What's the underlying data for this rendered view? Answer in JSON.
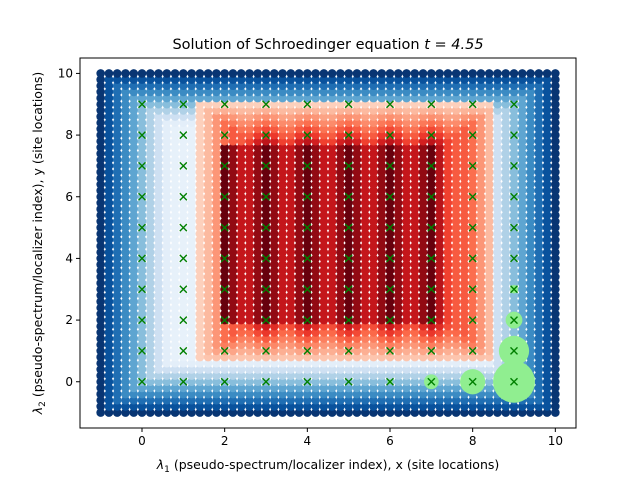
{
  "chart_data": {
    "type": "scatter",
    "title": "Solution of Schroedinger equation",
    "title_math": "t = 4.55",
    "xlabel": "(pseudo-spectrum/localizer index), x (site locations)",
    "xlabel_symbol": "λ",
    "xlabel_sub": "1",
    "ylabel": "(pseudo-spectrum/localizer index), y (site locations)",
    "ylabel_symbol": "λ",
    "ylabel_sub": "2",
    "xlim": [
      -1.5,
      10.5
    ],
    "ylim": [
      -1.5,
      10.5
    ],
    "x_ticks": [
      0,
      2,
      4,
      6,
      8,
      10
    ],
    "y_ticks": [
      0,
      2,
      4,
      6,
      8,
      10
    ],
    "grid": false,
    "background_grid": {
      "x_range": [
        -1,
        10
      ],
      "y_range": [
        -1,
        10
      ],
      "step": 0.2,
      "description_colormaps": [
        "Blues",
        "Reds"
      ]
    },
    "site_markers": {
      "marker": "x",
      "color": "#008000",
      "points": [
        [
          0,
          0
        ],
        [
          0,
          1
        ],
        [
          0,
          2
        ],
        [
          0,
          3
        ],
        [
          0,
          4
        ],
        [
          0,
          5
        ],
        [
          0,
          6
        ],
        [
          0,
          7
        ],
        [
          0,
          8
        ],
        [
          0,
          9
        ],
        [
          1,
          0
        ],
        [
          1,
          1
        ],
        [
          1,
          2
        ],
        [
          1,
          3
        ],
        [
          1,
          4
        ],
        [
          1,
          5
        ],
        [
          1,
          6
        ],
        [
          1,
          7
        ],
        [
          1,
          8
        ],
        [
          1,
          9
        ],
        [
          2,
          0
        ],
        [
          2,
          1
        ],
        [
          2,
          2
        ],
        [
          2,
          3
        ],
        [
          2,
          4
        ],
        [
          2,
          5
        ],
        [
          2,
          6
        ],
        [
          2,
          7
        ],
        [
          2,
          8
        ],
        [
          2,
          9
        ],
        [
          3,
          0
        ],
        [
          3,
          1
        ],
        [
          3,
          2
        ],
        [
          3,
          3
        ],
        [
          3,
          4
        ],
        [
          3,
          5
        ],
        [
          3,
          6
        ],
        [
          3,
          7
        ],
        [
          3,
          8
        ],
        [
          3,
          9
        ],
        [
          4,
          0
        ],
        [
          4,
          1
        ],
        [
          4,
          2
        ],
        [
          4,
          3
        ],
        [
          4,
          4
        ],
        [
          4,
          5
        ],
        [
          4,
          6
        ],
        [
          4,
          7
        ],
        [
          4,
          8
        ],
        [
          4,
          9
        ],
        [
          5,
          0
        ],
        [
          5,
          1
        ],
        [
          5,
          2
        ],
        [
          5,
          3
        ],
        [
          5,
          4
        ],
        [
          5,
          5
        ],
        [
          5,
          6
        ],
        [
          5,
          7
        ],
        [
          5,
          8
        ],
        [
          5,
          9
        ],
        [
          6,
          0
        ],
        [
          6,
          1
        ],
        [
          6,
          2
        ],
        [
          6,
          3
        ],
        [
          6,
          4
        ],
        [
          6,
          5
        ],
        [
          6,
          6
        ],
        [
          6,
          7
        ],
        [
          6,
          8
        ],
        [
          6,
          9
        ],
        [
          7,
          0
        ],
        [
          7,
          1
        ],
        [
          7,
          2
        ],
        [
          7,
          3
        ],
        [
          7,
          4
        ],
        [
          7,
          5
        ],
        [
          7,
          6
        ],
        [
          7,
          7
        ],
        [
          7,
          8
        ],
        [
          7,
          9
        ],
        [
          8,
          0
        ],
        [
          8,
          1
        ],
        [
          8,
          2
        ],
        [
          8,
          3
        ],
        [
          8,
          4
        ],
        [
          8,
          5
        ],
        [
          8,
          6
        ],
        [
          8,
          7
        ],
        [
          8,
          8
        ],
        [
          8,
          9
        ],
        [
          9,
          0
        ],
        [
          9,
          1
        ],
        [
          9,
          2
        ],
        [
          9,
          3
        ],
        [
          9,
          4
        ],
        [
          9,
          5
        ],
        [
          9,
          6
        ],
        [
          9,
          7
        ],
        [
          9,
          8
        ],
        [
          9,
          9
        ]
      ]
    },
    "amplitude_circles": {
      "color": "#90ee90",
      "points": [
        {
          "x": 9,
          "y": 0,
          "amplitude": 1.0
        },
        {
          "x": 8,
          "y": 0,
          "amplitude": 0.6
        },
        {
          "x": 9,
          "y": 1,
          "amplitude": 0.72
        },
        {
          "x": 9,
          "y": 2,
          "amplitude": 0.4
        },
        {
          "x": 7,
          "y": 0,
          "amplitude": 0.35
        },
        {
          "x": 9,
          "y": 3,
          "amplitude": 0.2
        },
        {
          "x": 6,
          "y": 0,
          "amplitude": 0.12
        }
      ]
    }
  }
}
